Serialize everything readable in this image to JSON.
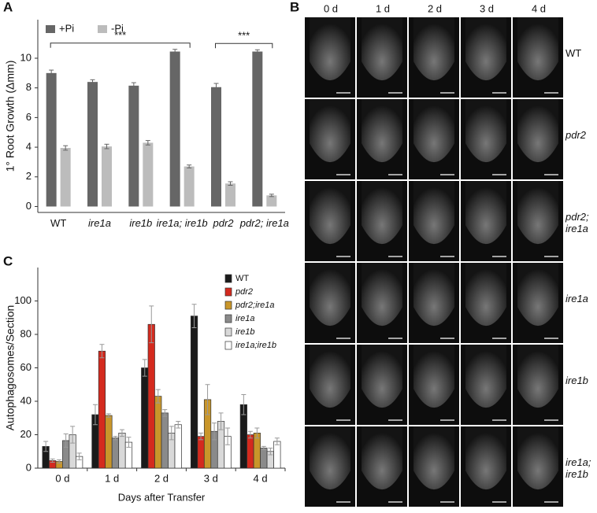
{
  "panels": {
    "a": "A",
    "b": "B",
    "c": "C"
  },
  "chart_data": [
    {
      "type": "bar",
      "y_label": "1° Root Growth (Δmm)",
      "categories": [
        "WT",
        "ire1a",
        "ire1b",
        "ire1a; ire1b",
        "pdr2",
        "pdr2; ire1a"
      ],
      "series": [
        {
          "name": "+Pi",
          "color": "#666666",
          "values": [
            9.0,
            8.4,
            8.15,
            10.45,
            8.05,
            10.45
          ],
          "errors": [
            0.2,
            0.15,
            0.2,
            0.15,
            0.25,
            0.12
          ]
        },
        {
          "name": "-Pi",
          "color": "#bcbcbc",
          "values": [
            3.95,
            4.05,
            4.3,
            2.7,
            1.55,
            0.75
          ],
          "errors": [
            0.15,
            0.15,
            0.15,
            0.1,
            0.12,
            0.08
          ]
        }
      ],
      "ylim": [
        -0.4,
        12.6
      ],
      "yticks": [
        0,
        2,
        4,
        6,
        8,
        10
      ],
      "annotations": [
        {
          "text": "***",
          "from": 0,
          "to": 3
        },
        {
          "text": "***",
          "from": 4,
          "to": 5
        }
      ]
    },
    {
      "type": "bar",
      "y_label": "Autophagosomes/Section",
      "x_label": "Days after Transfer",
      "categories": [
        "0 d",
        "1 d",
        "2 d",
        "3 d",
        "4 d"
      ],
      "series": [
        {
          "name": "WT",
          "color": "#1a1a1a",
          "values": [
            13,
            32,
            60,
            91,
            38
          ],
          "errors": [
            3,
            6,
            5,
            7,
            6
          ]
        },
        {
          "name": "pdr2",
          "color": "#d42a1e",
          "values": [
            4.5,
            70,
            86,
            19,
            20
          ],
          "errors": [
            1,
            4,
            11,
            2,
            2
          ]
        },
        {
          "name": "pdr2;ire1a",
          "color": "#c9962a",
          "values": [
            4,
            31.5,
            43,
            41,
            21
          ],
          "errors": [
            1,
            1,
            4,
            9,
            3
          ]
        },
        {
          "name": "ire1a",
          "color": "#8a8a8a",
          "values": [
            16.5,
            18,
            33,
            22,
            12
          ],
          "errors": [
            4,
            1,
            2,
            5,
            1
          ]
        },
        {
          "name": "ire1b",
          "color": "#d9d9d9",
          "values": [
            20,
            21,
            21,
            28,
            10
          ],
          "errors": [
            5,
            2,
            4,
            5,
            2
          ]
        },
        {
          "name": "ire1a;ire1b",
          "color": "#ffffff",
          "values": [
            7,
            15.5,
            26,
            19,
            16
          ],
          "errors": [
            2,
            3,
            2,
            5,
            2
          ]
        }
      ],
      "ylim": [
        0,
        120
      ],
      "yticks": [
        0,
        20,
        40,
        60,
        80,
        100
      ]
    }
  ],
  "micrographs": {
    "columns": [
      "0 d",
      "1 d",
      "2 d",
      "3 d",
      "4 d"
    ],
    "rows": [
      "WT",
      "pdr2",
      "pdr2; ire1a",
      "ire1a",
      "ire1b",
      "ire1a; ire1b"
    ]
  }
}
